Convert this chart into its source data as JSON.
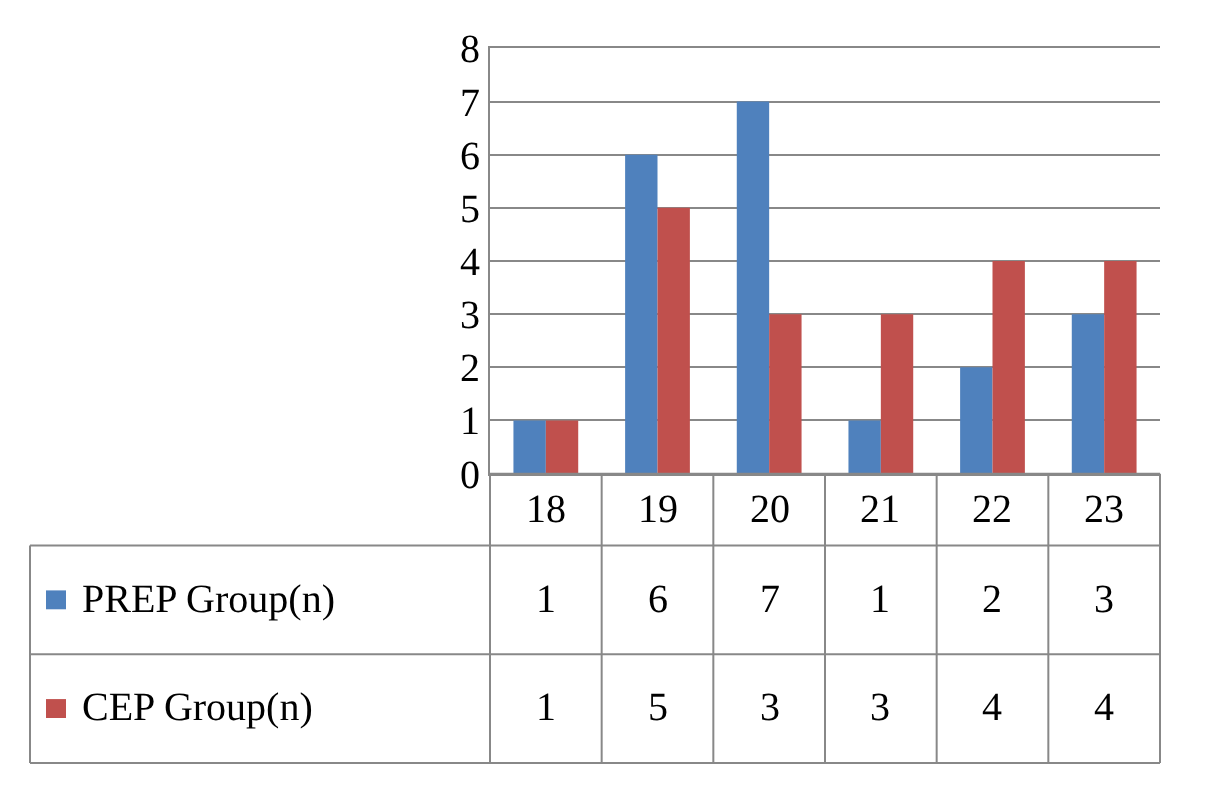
{
  "chart_data": {
    "type": "bar",
    "categories": [
      "18",
      "19",
      "20",
      "21",
      "22",
      "23"
    ],
    "series": [
      {
        "name": "PREP Group(n)",
        "color": "#4f81bd",
        "values": [
          1,
          6,
          7,
          1,
          2,
          3
        ]
      },
      {
        "name": "CEP Group(n)",
        "color": "#c0504d",
        "values": [
          1,
          5,
          3,
          3,
          4,
          4
        ]
      }
    ],
    "ylim": [
      0,
      8
    ],
    "yticks": [
      0,
      1,
      2,
      3,
      4,
      5,
      6,
      7,
      8
    ],
    "grid": "y",
    "data_labels": true,
    "legend": "bottom left"
  }
}
